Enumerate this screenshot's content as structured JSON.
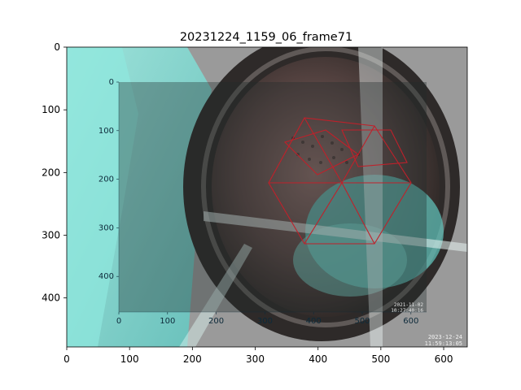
{
  "figure": {
    "title": "20231224_1159_06_frame71",
    "x_ticks": [
      "0",
      "100",
      "200",
      "300",
      "400",
      "500",
      "600"
    ],
    "y_ticks": [
      "0",
      "100",
      "200",
      "300",
      "400"
    ],
    "timestamp_line1": "2023-12-24",
    "timestamp_line2": "11:59:13:05"
  },
  "inset": {
    "x_ticks": [
      "0",
      "100",
      "200",
      "300",
      "400",
      "500",
      "600"
    ],
    "y_ticks": [
      "0",
      "100",
      "200",
      "300",
      "400"
    ],
    "timestamp_line1": "2021-11-02",
    "timestamp_line2": "10:27:40:16"
  },
  "colors": {
    "overlay_gray": "#9a9a9a",
    "drum_dark": "#3b3634",
    "cyan_cast": "#7fe0d6",
    "wireframe": "#c0202a"
  }
}
